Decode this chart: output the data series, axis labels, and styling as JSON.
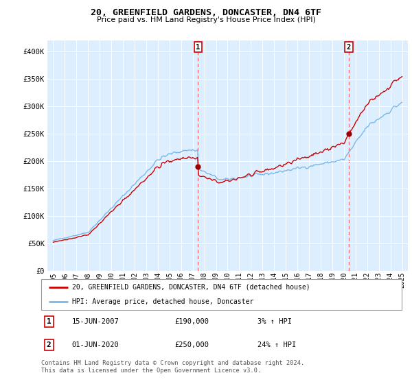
{
  "title": "20, GREENFIELD GARDENS, DONCASTER, DN4 6TF",
  "subtitle": "Price paid vs. HM Land Registry's House Price Index (HPI)",
  "legend_line1": "20, GREENFIELD GARDENS, DONCASTER, DN4 6TF (detached house)",
  "legend_line2": "HPI: Average price, detached house, Doncaster",
  "annotation1_label": "1",
  "annotation1_date": "15-JUN-2007",
  "annotation1_price": "£190,000",
  "annotation1_hpi": "3% ↑ HPI",
  "annotation2_label": "2",
  "annotation2_date": "01-JUN-2020",
  "annotation2_price": "£250,000",
  "annotation2_hpi": "24% ↑ HPI",
  "footer": "Contains HM Land Registry data © Crown copyright and database right 2024.\nThis data is licensed under the Open Government Licence v3.0.",
  "sale1_x": 2007.46,
  "sale1_y": 190000,
  "sale2_x": 2020.42,
  "sale2_y": 250000,
  "hpi_color": "#7ab8e8",
  "price_color": "#cc0000",
  "sale_dot_color": "#990000",
  "vline_color": "#ff6666",
  "background_color": "#ddeeff",
  "ylim_min": 0,
  "ylim_max": 420000,
  "xlim_min": 1994.5,
  "xlim_max": 2025.5,
  "yticks": [
    0,
    50000,
    100000,
    150000,
    200000,
    250000,
    300000,
    350000,
    400000
  ],
  "ytick_labels": [
    "£0",
    "£50K",
    "£100K",
    "£150K",
    "£200K",
    "£250K",
    "£300K",
    "£350K",
    "£400K"
  ],
  "xticks": [
    1995,
    1996,
    1997,
    1998,
    1999,
    2000,
    2001,
    2002,
    2003,
    2004,
    2005,
    2006,
    2007,
    2008,
    2009,
    2010,
    2011,
    2012,
    2013,
    2014,
    2015,
    2016,
    2017,
    2018,
    2019,
    2020,
    2021,
    2022,
    2023,
    2024,
    2025
  ]
}
